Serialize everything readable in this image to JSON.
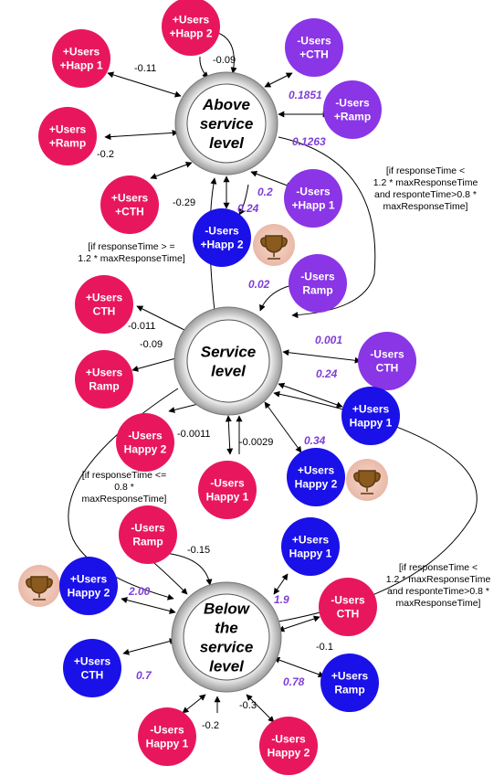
{
  "colors": {
    "pink": "#e8175d",
    "purple": "#8a35e6",
    "blue": "#1a10e8",
    "highlight": "#7f3fd6"
  },
  "states": [
    {
      "id": "above",
      "lines": [
        "Above",
        "service",
        "level"
      ]
    },
    {
      "id": "service",
      "lines": [
        "Service",
        "level"
      ]
    },
    {
      "id": "below",
      "lines": [
        "Below",
        "the",
        "service",
        "level"
      ]
    }
  ],
  "nodes": [
    {
      "id": "a_users_happ1",
      "color": "pink",
      "lines": [
        "+Users",
        "+Happ 1"
      ]
    },
    {
      "id": "a_users_happ2",
      "color": "pink",
      "lines": [
        "+Users",
        "+Happ 2"
      ]
    },
    {
      "id": "a_minus_cth",
      "color": "purple",
      "lines": [
        "-Users",
        "+CTH"
      ]
    },
    {
      "id": "a_minus_ramp",
      "color": "purple",
      "lines": [
        "-Users",
        "+Ramp"
      ]
    },
    {
      "id": "a_users_ramp",
      "color": "pink",
      "lines": [
        "+Users",
        "+Ramp"
      ]
    },
    {
      "id": "a_users_cth",
      "color": "pink",
      "lines": [
        "+Users",
        "+CTH"
      ]
    },
    {
      "id": "a_minus_happ1",
      "color": "purple",
      "lines": [
        "-Users",
        "+Happ 1"
      ]
    },
    {
      "id": "a_minus_happ2",
      "color": "blue",
      "lines": [
        "-Users",
        "+Happ 2"
      ]
    },
    {
      "id": "s_users_cth",
      "color": "pink",
      "lines": [
        "+Users",
        "CTH"
      ]
    },
    {
      "id": "s_users_ramp",
      "color": "pink",
      "lines": [
        "+Users",
        "Ramp"
      ]
    },
    {
      "id": "s_minus_ramp",
      "color": "purple",
      "lines": [
        "-Users",
        "Ramp"
      ]
    },
    {
      "id": "s_minus_cth",
      "color": "purple",
      "lines": [
        "-Users",
        "CTH"
      ]
    },
    {
      "id": "s_users_happy1",
      "color": "blue",
      "lines": [
        "+Users",
        "Happy 1"
      ]
    },
    {
      "id": "s_users_happy2",
      "color": "blue",
      "lines": [
        "+Users",
        "Happy 2"
      ]
    },
    {
      "id": "s_minus_happy2",
      "color": "pink",
      "lines": [
        "-Users",
        "Happy 2"
      ]
    },
    {
      "id": "s_minus_happy1",
      "color": "pink",
      "lines": [
        "-Users",
        "Happy 1"
      ]
    },
    {
      "id": "b_minus_ramp",
      "color": "pink",
      "lines": [
        "-Users",
        "Ramp"
      ]
    },
    {
      "id": "b_users_happy1",
      "color": "blue",
      "lines": [
        "+Users",
        "Happy 1"
      ]
    },
    {
      "id": "b_users_happy2",
      "color": "blue",
      "lines": [
        "+Users",
        "Happy 2"
      ]
    },
    {
      "id": "b_minus_cth",
      "color": "pink",
      "lines": [
        "-Users",
        "CTH"
      ]
    },
    {
      "id": "b_users_cth",
      "color": "blue",
      "lines": [
        "+Users",
        "CTH"
      ]
    },
    {
      "id": "b_users_ramp",
      "color": "blue",
      "lines": [
        "+Users",
        "Ramp"
      ]
    },
    {
      "id": "b_minus_happy1",
      "color": "pink",
      "lines": [
        "-Users",
        "Happy 1"
      ]
    },
    {
      "id": "b_minus_happy2",
      "color": "pink",
      "lines": [
        "-Users",
        "Happy 2"
      ]
    }
  ],
  "weights": [
    {
      "id": "w_a_happ1",
      "text": "-0.11",
      "highlight": false
    },
    {
      "id": "w_a_happ2",
      "text": "-0.09",
      "highlight": false
    },
    {
      "id": "w_a_mcth",
      "text": "0.1851",
      "highlight": true
    },
    {
      "id": "w_a_mramp",
      "text": "0.1263",
      "highlight": true
    },
    {
      "id": "w_a_ramp",
      "text": "-0.2",
      "highlight": false
    },
    {
      "id": "w_a_cth",
      "text": "-0.29",
      "highlight": false
    },
    {
      "id": "w_a_mhapp1",
      "text": "0.2",
      "highlight": true
    },
    {
      "id": "w_a_mhapp2",
      "text": "0.24",
      "highlight": true
    },
    {
      "id": "w_s_cth",
      "text": "-0.011",
      "highlight": false
    },
    {
      "id": "w_s_ramp",
      "text": "-0.09",
      "highlight": false
    },
    {
      "id": "w_s_mramp",
      "text": "0.02",
      "highlight": true
    },
    {
      "id": "w_s_mcth_top",
      "text": "0.001",
      "highlight": true
    },
    {
      "id": "w_s_mcth",
      "text": "0.24",
      "highlight": true
    },
    {
      "id": "w_s_happy2",
      "text": "0.34",
      "highlight": true
    },
    {
      "id": "w_s_mhappy2",
      "text": "-0.0011",
      "highlight": false
    },
    {
      "id": "w_s_mhappy1",
      "text": "-0.0029",
      "highlight": false
    },
    {
      "id": "w_b_mramp",
      "text": "-0.15",
      "highlight": false
    },
    {
      "id": "w_b_happy2",
      "text": "2.00",
      "highlight": true
    },
    {
      "id": "w_b_happy1",
      "text": "1.9",
      "highlight": true
    },
    {
      "id": "w_b_mcth",
      "text": "-0.1",
      "highlight": false
    },
    {
      "id": "w_b_cth",
      "text": "0.7",
      "highlight": true
    },
    {
      "id": "w_b_ramp",
      "text": "0.78",
      "highlight": true
    },
    {
      "id": "w_b_mhappy2",
      "text": "-0.3",
      "highlight": false
    },
    {
      "id": "w_b_mhappy1",
      "text": "-0.2",
      "highlight": false
    }
  ],
  "conditions": [
    {
      "id": "cond_above_to_service",
      "lines": [
        "[if responseTime <",
        "1.2 * maxResponseTime",
        "and responteTime>0.8 *",
        "maxResponseTime]"
      ]
    },
    {
      "id": "cond_service_to_above",
      "lines": [
        "[if responseTime > =",
        "1.2 * maxResponseTime]"
      ]
    },
    {
      "id": "cond_service_to_below",
      "lines": [
        "[if responseTime <=",
        "0.8 *",
        "maxResponseTime]"
      ]
    },
    {
      "id": "cond_below_to_service",
      "lines": [
        "[if responseTime <",
        "1.2 * maxResponseTime",
        "and responteTime>0.8 *",
        "maxResponseTime]"
      ]
    }
  ]
}
